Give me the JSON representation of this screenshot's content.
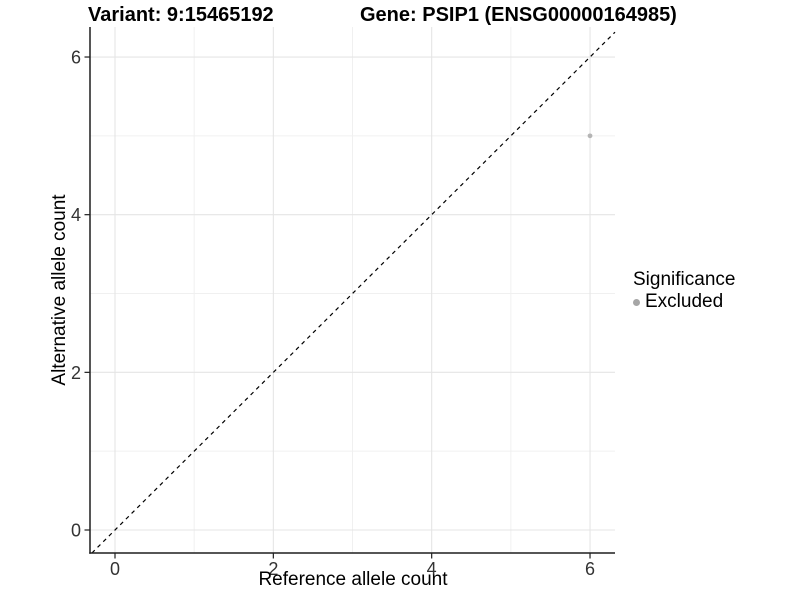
{
  "chart_data": {
    "type": "scatter",
    "title_variant": "Variant: 9:15465192",
    "title_gene": "Gene: PSIP1 (ENSG00000164985)",
    "xlabel": "Reference allele count",
    "ylabel": "Alternative allele count",
    "xlim": [
      -0.3,
      6.32
    ],
    "ylim": [
      -0.3,
      6.35
    ],
    "major_ticks": [
      0,
      2,
      4,
      6
    ],
    "minor_ticks": [
      1,
      3,
      5
    ],
    "grid": true,
    "legend": {
      "position": "right",
      "title": "Significance",
      "items": [
        {
          "label": "Excluded",
          "color": "#a6a6a6"
        }
      ]
    },
    "points": [
      {
        "x": 6,
        "y": 5,
        "series": "Excluded"
      }
    ],
    "reference_line": {
      "kind": "identity",
      "style": "dashed",
      "color": "#000000"
    },
    "colors": {
      "background": "#ffffff",
      "axis": "#1f1f1f",
      "grid_major": "#e5e5e5",
      "grid_minor": "#f0f0f0",
      "tick_label": "#333333",
      "point": "#b5b5b5"
    }
  }
}
